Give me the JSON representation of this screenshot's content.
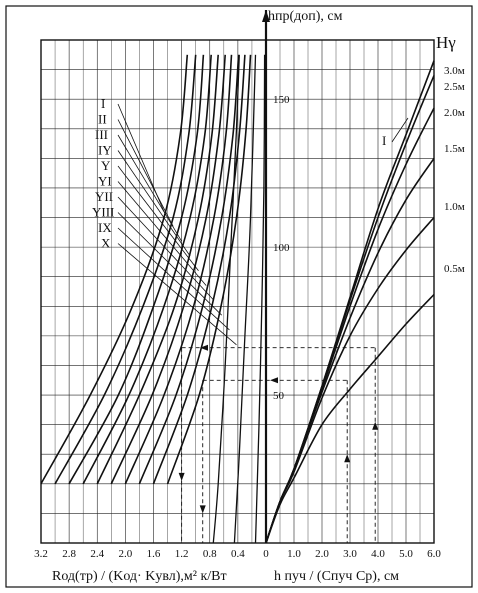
{
  "chart_data": [
    {
      "type": "line",
      "panel": "left",
      "x_direction": "reversed",
      "xlabel": "Rод(тр) / (Kод· Kувл),м² к/Вт",
      "xlim": [
        0,
        3.2
      ],
      "x_ticks": [
        "3.2",
        "2.8",
        "2.4",
        "2.0",
        "1.6",
        "1.2",
        "0.8",
        "0.4",
        "0"
      ],
      "series": [
        {
          "name": "I",
          "points": [
            [
              3.2,
              20
            ],
            [
              2.5,
              50
            ],
            [
              1.9,
              80
            ],
            [
              1.45,
              110
            ],
            [
              1.22,
              138
            ],
            [
              1.12,
              165
            ]
          ]
        },
        {
          "name": "II",
          "points": [
            [
              3.0,
              20
            ],
            [
              2.3,
              50
            ],
            [
              1.75,
              80
            ],
            [
              1.32,
              110
            ],
            [
              1.1,
              138
            ],
            [
              1.0,
              165
            ]
          ]
        },
        {
          "name": "III",
          "points": [
            [
              2.8,
              20
            ],
            [
              2.1,
              50
            ],
            [
              1.6,
              80
            ],
            [
              1.2,
              110
            ],
            [
              0.98,
              138
            ],
            [
              0.89,
              165
            ]
          ]
        },
        {
          "name": "IY",
          "points": [
            [
              2.6,
              20
            ],
            [
              1.95,
              50
            ],
            [
              1.45,
              80
            ],
            [
              1.08,
              110
            ],
            [
              0.87,
              138
            ],
            [
              0.78,
              165
            ]
          ]
        },
        {
          "name": "Y",
          "points": [
            [
              2.4,
              20
            ],
            [
              1.8,
              50
            ],
            [
              1.3,
              80
            ],
            [
              0.96,
              110
            ],
            [
              0.77,
              138
            ],
            [
              0.68,
              165
            ]
          ]
        },
        {
          "name": "YI",
          "points": [
            [
              2.2,
              20
            ],
            [
              1.62,
              50
            ],
            [
              1.17,
              80
            ],
            [
              0.85,
              110
            ],
            [
              0.67,
              138
            ],
            [
              0.58,
              165
            ]
          ]
        },
        {
          "name": "YII",
          "points": [
            [
              2.0,
              20
            ],
            [
              1.45,
              50
            ],
            [
              1.03,
              80
            ],
            [
              0.74,
              110
            ],
            [
              0.57,
              138
            ],
            [
              0.49,
              165
            ]
          ]
        },
        {
          "name": "YIII",
          "points": [
            [
              1.8,
              20
            ],
            [
              1.28,
              50
            ],
            [
              0.9,
              80
            ],
            [
              0.63,
              110
            ],
            [
              0.47,
              138
            ],
            [
              0.39,
              165
            ]
          ]
        },
        {
          "name": "IX",
          "points": [
            [
              1.6,
              20
            ],
            [
              1.12,
              50
            ],
            [
              0.77,
              80
            ],
            [
              0.52,
              110
            ],
            [
              0.38,
              138
            ],
            [
              0.3,
              165
            ]
          ]
        },
        {
          "name": "X",
          "points": [
            [
              1.4,
              20
            ],
            [
              0.95,
              50
            ],
            [
              0.64,
              80
            ],
            [
              0.42,
              110
            ],
            [
              0.29,
              138
            ],
            [
              0.22,
              165
            ]
          ]
        },
        {
          "name": "",
          "points": [
            [
              0.15,
              0
            ],
            [
              0.1,
              40
            ],
            [
              0.06,
              80
            ],
            [
              0.03,
              120
            ],
            [
              0.02,
              165
            ]
          ]
        },
        {
          "name": "",
          "points": [
            [
              0.45,
              0
            ],
            [
              0.38,
              30
            ],
            [
              0.3,
              70
            ],
            [
              0.22,
              110
            ],
            [
              0.15,
              165
            ]
          ]
        },
        {
          "name": "",
          "points": [
            [
              0.75,
              0
            ],
            [
              0.68,
              20
            ],
            [
              0.58,
              60
            ],
            [
              0.5,
              100
            ],
            [
              0.42,
              140
            ],
            [
              0.38,
              165
            ]
          ]
        }
      ],
      "roman_labels": [
        "I",
        "II",
        "III",
        "IY",
        "Y",
        "YI",
        "YII",
        "YIII",
        "IX",
        "X"
      ]
    },
    {
      "type": "line",
      "panel": "right",
      "xlabel": "h пуч / (Cпуч Cp), см",
      "ylabel": "hпр(доп), см",
      "xlim": [
        0,
        6.0
      ],
      "ylim": [
        0,
        170
      ],
      "x_ticks": [
        "0",
        "1.0",
        "2.0",
        "3.0",
        "4.0",
        "5.0",
        "6.0"
      ],
      "y_ticks": [
        "50",
        "100",
        "150"
      ],
      "legend_title": "Hγ",
      "series": [
        {
          "name": "3.0м",
          "points": [
            [
              0,
              0
            ],
            [
              0.5,
              14
            ],
            [
              1.0,
              25
            ],
            [
              2.0,
              53
            ],
            [
              3.0,
              83
            ],
            [
              4.0,
              113
            ],
            [
              5.0,
              138
            ],
            [
              6.0,
              163
            ]
          ]
        },
        {
          "name": "2.5м",
          "points": [
            [
              0,
              0
            ],
            [
              0.5,
              14
            ],
            [
              1.0,
              25
            ],
            [
              2.0,
              53
            ],
            [
              3.0,
              82
            ],
            [
              4.0,
              110
            ],
            [
              5.0,
              135
            ],
            [
              6.0,
              158
            ]
          ]
        },
        {
          "name": "2.0м",
          "points": [
            [
              0,
              0
            ],
            [
              0.5,
              14
            ],
            [
              1.0,
              25
            ],
            [
              2.0,
              52
            ],
            [
              3.0,
              80
            ],
            [
              4.0,
              106
            ],
            [
              5.0,
              128
            ],
            [
              6.0,
              147
            ]
          ]
        },
        {
          "name": "1.5м",
          "points": [
            [
              0,
              0
            ],
            [
              0.5,
              14
            ],
            [
              1.0,
              25
            ],
            [
              2.0,
              51
            ],
            [
              3.0,
              76
            ],
            [
              4.0,
              98
            ],
            [
              5.0,
              116
            ],
            [
              6.0,
              130
            ]
          ]
        },
        {
          "name": "1.0м",
          "points": [
            [
              0,
              0
            ],
            [
              0.5,
              14
            ],
            [
              1.0,
              24
            ],
            [
              2.0,
              49
            ],
            [
              3.0,
              70
            ],
            [
              4.0,
              86
            ],
            [
              5.0,
              99
            ],
            [
              6.0,
              110
            ]
          ]
        },
        {
          "name": "0.5м",
          "points": [
            [
              0,
              0
            ],
            [
              0.5,
              13
            ],
            [
              1.0,
              22
            ],
            [
              2.0,
              40
            ],
            [
              3.0,
              52
            ],
            [
              4.0,
              63
            ],
            [
              5.0,
              74
            ],
            [
              6.0,
              84
            ]
          ]
        }
      ],
      "annotations": [
        "I"
      ]
    }
  ],
  "example_path": {
    "y_values": [
      55,
      66
    ],
    "x_right_values": [
      2.9,
      3.9
    ],
    "x_left_values": [
      0.9,
      1.2
    ]
  }
}
